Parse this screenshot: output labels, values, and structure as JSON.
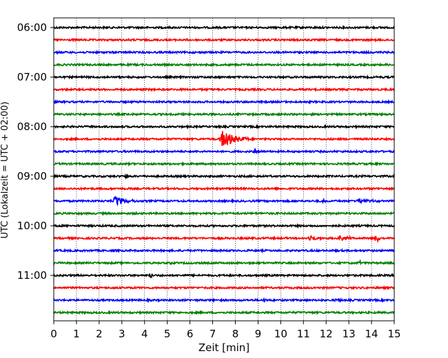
{
  "chart_data": {
    "type": "line",
    "subtype": "helicorder",
    "xlabel": "Zeit  [min]",
    "ylabel": "UTC (Lokalzeit = UTC + 02:00)",
    "xlim": [
      0,
      15
    ],
    "x_ticks": [
      "0",
      "1",
      "2",
      "3",
      "4",
      "5",
      "6",
      "7",
      "8",
      "9",
      "10",
      "11",
      "12",
      "13",
      "14",
      "15"
    ],
    "y_tick_labels": [
      "06:00",
      "07:00",
      "08:00",
      "09:00",
      "10:00",
      "11:00"
    ],
    "grid_x": true,
    "trace_interval_minutes": 15,
    "trace_colors": [
      "#000000",
      "#ff0000",
      "#0000ff",
      "#008000"
    ],
    "traces": [
      {
        "start": "06:00",
        "events": []
      },
      {
        "start": "06:15",
        "events": []
      },
      {
        "start": "06:30",
        "events": []
      },
      {
        "start": "06:45",
        "events": []
      },
      {
        "start": "07:00",
        "events": []
      },
      {
        "start": "07:15",
        "events": []
      },
      {
        "start": "07:30",
        "events": []
      },
      {
        "start": "07:45",
        "events": []
      },
      {
        "start": "08:00",
        "events": []
      },
      {
        "start": "08:15",
        "events": [
          {
            "t": 7.4,
            "amp": 1.0,
            "dur": 1.2
          }
        ]
      },
      {
        "start": "08:30",
        "events": [
          {
            "t": 8.9,
            "amp": 0.35,
            "dur": 0.3
          }
        ]
      },
      {
        "start": "08:45",
        "events": []
      },
      {
        "start": "09:00",
        "events": [
          {
            "t": 3.2,
            "amp": 0.35,
            "dur": 0.1
          },
          {
            "t": 1.4,
            "amp": 0.2,
            "dur": 0.1
          },
          {
            "t": 9.5,
            "amp": 0.2,
            "dur": 0.3
          }
        ]
      },
      {
        "start": "09:15",
        "events": []
      },
      {
        "start": "09:30",
        "events": [
          {
            "t": 2.7,
            "amp": 0.6,
            "dur": 0.9
          },
          {
            "t": 11.9,
            "amp": 0.25,
            "dur": 0.1
          },
          {
            "t": 13.4,
            "amp": 0.25,
            "dur": 1.2
          }
        ]
      },
      {
        "start": "09:45",
        "events": []
      },
      {
        "start": "10:00",
        "events": []
      },
      {
        "start": "10:15",
        "events": [
          {
            "t": 11.3,
            "amp": 0.45,
            "dur": 0.5
          },
          {
            "t": 12.6,
            "amp": 0.4,
            "dur": 0.6
          },
          {
            "t": 14.2,
            "amp": 0.45,
            "dur": 0.5
          }
        ]
      },
      {
        "start": "10:30",
        "events": []
      },
      {
        "start": "10:45",
        "events": [
          {
            "t": 5.2,
            "amp": 0.2,
            "dur": 0.1
          },
          {
            "t": 13.5,
            "amp": 0.2,
            "dur": 0.1
          }
        ]
      },
      {
        "start": "11:00",
        "events": [
          {
            "t": 4.3,
            "amp": 0.35,
            "dur": 0.1
          }
        ]
      },
      {
        "start": "11:15",
        "events": []
      },
      {
        "start": "11:30",
        "events": [
          {
            "t": 9.3,
            "amp": 0.3,
            "dur": 0.1
          },
          {
            "t": 12.5,
            "amp": 0.25,
            "dur": 0.3
          }
        ]
      },
      {
        "start": "11:45",
        "events": []
      }
    ]
  }
}
